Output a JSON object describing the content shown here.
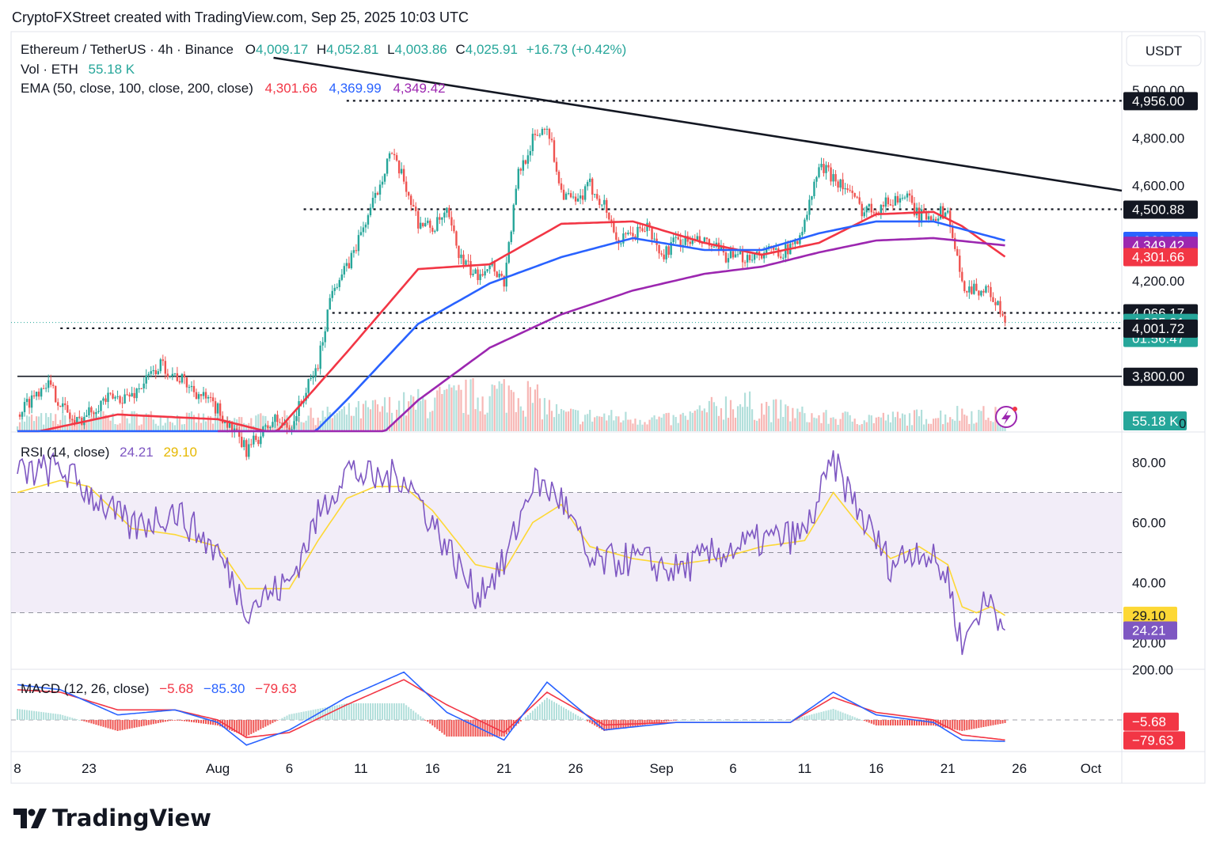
{
  "caption": "CryptoFXStreet created with TradingView.com, Sep 25, 2025 10:03 UTC",
  "brand": {
    "name": "TradingView"
  },
  "scale_unit": "USDT",
  "colors": {
    "up": "#26a69a",
    "down": "#ef5350",
    "ema50": "#f23645",
    "ema100": "#2962ff",
    "ema200": "#9c27b0",
    "rsi": "#7e57c2",
    "rsi_ma": "#fdd835",
    "macd": "#2962ff",
    "signal": "#f23645",
    "hist_up": "#b2dfdb",
    "hist_down": "#ef5350"
  },
  "legend": {
    "symbol": "Ethereum / TetherUS · 4h · Binance",
    "open_label": "O",
    "open": "4,009.17",
    "high_label": "H",
    "high": "4,052.81",
    "low_label": "L",
    "low": "4,003.86",
    "close_label": "C",
    "close": "4,025.91",
    "change": "+16.73 (+0.42%)",
    "vol_label": "Vol · ETH",
    "vol": "55.18 K",
    "ema_label": "EMA (50, close, 100, close, 200, close)",
    "ema50": "4,301.66",
    "ema100": "4,369.99",
    "ema200": "4,349.42",
    "rsi_label": "RSI (14, close)",
    "rsi": "24.21",
    "rsi_ma": "29.10",
    "macd_label": "MACD (12, 26, close)",
    "macd_hist": "−5.68",
    "macd_line": "−85.30",
    "macd_signal": "−79.63"
  },
  "price_ticks": [
    "5,000.00",
    "4,800.00",
    "4,600.00",
    "4,200.00"
  ],
  "price_badges": [
    {
      "label": "4,956.00",
      "value": 4956,
      "kind": "level"
    },
    {
      "label": "4,500.88",
      "value": 4500.88,
      "kind": "level"
    },
    {
      "label": "4,369.99",
      "value": 4369.99,
      "kind": "ema100"
    },
    {
      "label": "4,349.42",
      "value": 4349.42,
      "kind": "ema200"
    },
    {
      "label": "4,301.66",
      "value": 4301.66,
      "kind": "ema50"
    },
    {
      "label": "4,066.17",
      "value": 4066.17,
      "kind": "level"
    },
    {
      "label": "4,025.91",
      "sub": "01:56:47",
      "value": 4025.91,
      "kind": "price"
    },
    {
      "label": "4,001.72",
      "value": 4001.72,
      "kind": "level"
    },
    {
      "label": "3,800.00",
      "value": 3800,
      "kind": "level"
    }
  ],
  "volume_badge": "55.18 K",
  "volume_tick": "0",
  "rsi_ticks": [
    "80.00",
    "60.00",
    "40.00",
    "20.00"
  ],
  "rsi_badges": [
    {
      "label": "29.10",
      "kind": "ma"
    },
    {
      "label": "24.21",
      "kind": "rsi"
    }
  ],
  "macd_ticks": [
    "200.00"
  ],
  "macd_badges": [
    {
      "label": "−5.68"
    },
    {
      "label": "−79.63"
    }
  ],
  "x_ticks": [
    {
      "label": "8",
      "date": "Jul 18"
    },
    {
      "label": "23",
      "date": "Jul 23"
    },
    {
      "label": "Aug",
      "date": "Aug 1"
    },
    {
      "label": "6",
      "date": "Aug 6"
    },
    {
      "label": "11",
      "date": "Aug 11"
    },
    {
      "label": "16",
      "date": "Aug 16"
    },
    {
      "label": "21",
      "date": "Aug 21"
    },
    {
      "label": "26",
      "date": "Aug 26"
    },
    {
      "label": "Sep",
      "date": "Sep 1"
    },
    {
      "label": "6",
      "date": "Sep 6"
    },
    {
      "label": "11",
      "date": "Sep 11"
    },
    {
      "label": "16",
      "date": "Sep 16"
    },
    {
      "label": "21",
      "date": "Sep 21"
    },
    {
      "label": "26",
      "date": "Sep 26"
    },
    {
      "label": "Oct",
      "date": "Oct 1"
    }
  ],
  "chart_data": {
    "type": "line",
    "x_unit": "date (2025)",
    "y_unit": "USDT",
    "series": [
      {
        "name": "Ethereum / TetherUS",
        "x": [
          "Jul 18",
          "Jul 20",
          "Jul 22",
          "Jul 24",
          "Jul 26",
          "Jul 28",
          "Jul 30",
          "Aug 1",
          "Aug 3",
          "Aug 5",
          "Aug 6",
          "Aug 8",
          "Aug 9",
          "Aug 10",
          "Aug 12",
          "Aug 13",
          "Aug 14",
          "Aug 15",
          "Aug 16",
          "Aug 17",
          "Aug 18",
          "Aug 19",
          "Aug 20",
          "Aug 21",
          "Aug 22",
          "Aug 23",
          "Aug 24",
          "Aug 25",
          "Aug 26",
          "Aug 27",
          "Aug 28",
          "Aug 29",
          "Aug 31",
          "Sep 1",
          "Sep 2",
          "Sep 4",
          "Sep 6",
          "Sep 8",
          "Sep 10",
          "Sep 11",
          "Sep 12",
          "Sep 13",
          "Sep 14",
          "Sep 15",
          "Sep 16",
          "Sep 18",
          "Sep 19",
          "Sep 20",
          "Sep 21",
          "Sep 22",
          "Sep 23",
          "Sep 24",
          "Sep 25"
        ],
        "close": [
          3640,
          3780,
          3600,
          3700,
          3720,
          3850,
          3760,
          3660,
          3490,
          3620,
          3580,
          3850,
          4180,
          4250,
          4550,
          4740,
          4620,
          4450,
          4420,
          4480,
          4290,
          4220,
          4280,
          4200,
          4650,
          4790,
          4860,
          4580,
          4520,
          4600,
          4520,
          4360,
          4430,
          4300,
          4370,
          4360,
          4290,
          4320,
          4330,
          4440,
          4680,
          4640,
          4580,
          4500,
          4510,
          4560,
          4470,
          4480,
          4490,
          4180,
          4170,
          4150,
          4025.91
        ]
      },
      {
        "name": "EMA 50",
        "x": [
          "Jul 18",
          "Jul 25",
          "Aug 1",
          "Aug 5",
          "Aug 10",
          "Aug 15",
          "Aug 20",
          "Aug 25",
          "Aug 30",
          "Sep 4",
          "Sep 8",
          "Sep 12",
          "Sep 16",
          "Sep 20",
          "Sep 22",
          "Sep 25"
        ],
        "values": [
          3550,
          3640,
          3620,
          3560,
          3900,
          4250,
          4270,
          4440,
          4450,
          4360,
          4310,
          4360,
          4480,
          4490,
          4430,
          4301.66
        ]
      },
      {
        "name": "EMA 100",
        "x": [
          "Jul 18",
          "Aug 1",
          "Aug 6",
          "Aug 10",
          "Aug 15",
          "Aug 20",
          "Aug 25",
          "Aug 30",
          "Sep 4",
          "Sep 8",
          "Sep 12",
          "Sep 16",
          "Sep 20",
          "Sep 25"
        ],
        "values": [
          3350,
          3430,
          3460,
          3700,
          4020,
          4190,
          4300,
          4380,
          4330,
          4330,
          4400,
          4450,
          4450,
          4369.99
        ]
      },
      {
        "name": "EMA 200",
        "x": [
          "Aug 1",
          "Aug 6",
          "Aug 10",
          "Aug 15",
          "Aug 20",
          "Aug 25",
          "Aug 30",
          "Sep 4",
          "Sep 8",
          "Sep 12",
          "Sep 16",
          "Sep 20",
          "Sep 25"
        ],
        "values": [
          3050,
          3180,
          3420,
          3700,
          3920,
          4060,
          4160,
          4230,
          4260,
          4320,
          4370,
          4380,
          4349.42
        ]
      }
    ],
    "volume": {
      "name": "Vol · ETH",
      "x": [
        "Jul 20",
        "Jul 27",
        "Aug 3",
        "Aug 9",
        "Aug 14",
        "Aug 22",
        "Aug 25",
        "Sep 2",
        "Sep 6",
        "Sep 12",
        "Sep 17",
        "Sep 21",
        "Sep 22",
        "Sep 25"
      ],
      "values": [
        45,
        52,
        40,
        60,
        95,
        150,
        60,
        42,
        105,
        50,
        48,
        58,
        68,
        55.18
      ]
    },
    "levels": [
      4956.0,
      4500.88,
      4066.17,
      4001.72,
      3800.0
    ],
    "trendline": {
      "from": {
        "x": "Aug 6",
        "y": 5020
      },
      "to": {
        "x": "Sep 27",
        "y": 4585
      }
    },
    "rsi": {
      "name": "RSI (14, close)",
      "x": [
        "Jul 18",
        "Jul 21",
        "Jul 23",
        "Jul 26",
        "Jul 29",
        "Aug 1",
        "Aug 3",
        "Aug 6",
        "Aug 8",
        "Aug 10",
        "Aug 12",
        "Aug 14",
        "Aug 16",
        "Aug 19",
        "Aug 21",
        "Aug 23",
        "Aug 25",
        "Aug 27",
        "Aug 30",
        "Sep 2",
        "Sep 5",
        "Sep 8",
        "Sep 11",
        "Sep 13",
        "Sep 15",
        "Sep 17",
        "Sep 19",
        "Sep 21",
        "Sep 22",
        "Sep 23",
        "Sep 24",
        "Sep 25"
      ],
      "values": [
        76,
        78,
        70,
        58,
        64,
        50,
        32,
        40,
        62,
        78,
        74,
        76,
        60,
        36,
        46,
        74,
        68,
        46,
        48,
        44,
        50,
        54,
        56,
        80,
        62,
        46,
        52,
        42,
        18,
        30,
        34,
        24.21
      ],
      "ma_values": [
        70,
        74,
        72,
        58,
        56,
        52,
        38,
        38,
        54,
        68,
        72,
        72,
        64,
        46,
        44,
        60,
        66,
        52,
        48,
        46,
        48,
        52,
        54,
        70,
        58,
        48,
        52,
        46,
        32,
        30,
        32,
        29.1
      ],
      "bands": [
        30,
        70
      ],
      "ylim": [
        10,
        90
      ]
    },
    "macd": {
      "name": "MACD (12, 26, close)",
      "x": [
        "Jul 18",
        "Jul 21",
        "Jul 25",
        "Jul 29",
        "Aug 1",
        "Aug 3",
        "Aug 6",
        "Aug 10",
        "Aug 14",
        "Aug 17",
        "Aug 21",
        "Aug 24",
        "Aug 28",
        "Sep 2",
        "Sep 6",
        "Sep 10",
        "Sep 13",
        "Sep 16",
        "Sep 20",
        "Sep 22",
        "Sep 25"
      ],
      "macd": [
        140,
        120,
        20,
        40,
        -10,
        -100,
        -40,
        90,
        190,
        30,
        -80,
        150,
        -40,
        -10,
        -10,
        -10,
        110,
        20,
        -10,
        -80,
        -85.3
      ],
      "signal": [
        120,
        110,
        40,
        40,
        0,
        -70,
        -50,
        60,
        160,
        60,
        -50,
        110,
        -20,
        -10,
        -10,
        -10,
        90,
        30,
        0,
        -60,
        -79.63
      ],
      "histogram_last": -5.68,
      "ylim": [
        -120,
        260
      ]
    }
  }
}
